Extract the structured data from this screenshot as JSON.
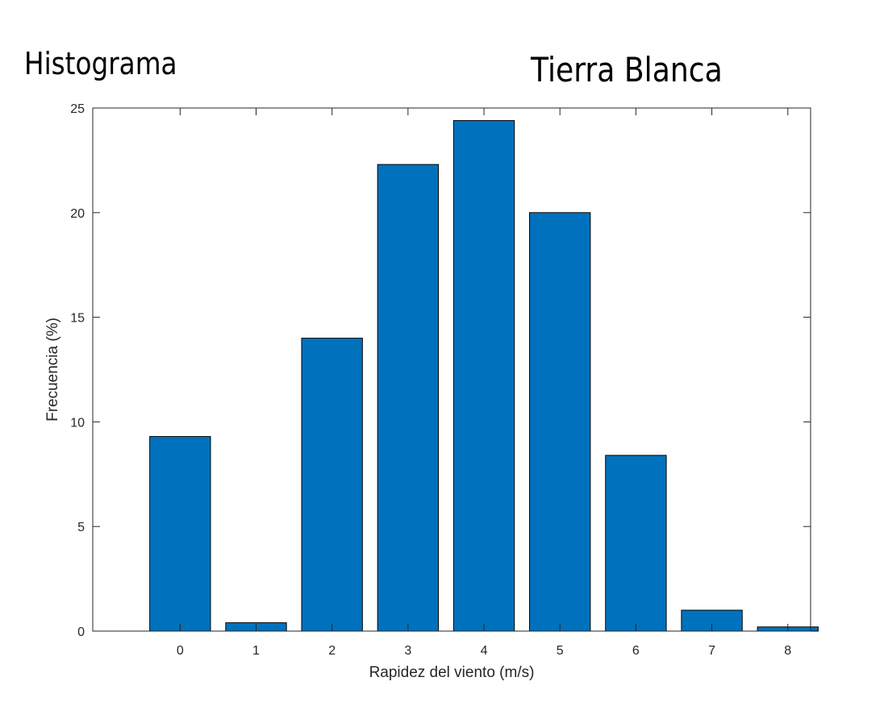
{
  "headings": {
    "left": "Histograma",
    "right": "Tierra Blanca"
  },
  "chart_data": {
    "type": "bar",
    "categories": [
      "0",
      "1",
      "2",
      "3",
      "4",
      "5",
      "6",
      "7",
      "8"
    ],
    "x": [
      0,
      1,
      2,
      3,
      4,
      5,
      6,
      7,
      8
    ],
    "values": [
      9.3,
      0.4,
      14.0,
      22.3,
      24.4,
      20.0,
      8.4,
      1.0,
      0.2
    ],
    "title": "",
    "xlabel": "Rapidez del viento (m/s)",
    "ylabel": "Frecuencia (%)",
    "xlim": [
      -1.15,
      8.3
    ],
    "ylim": [
      0,
      25
    ],
    "yticks": [
      0,
      5,
      10,
      15,
      20,
      25
    ],
    "xticks": [
      0,
      1,
      2,
      3,
      4,
      5,
      6,
      7,
      8
    ],
    "grid": false,
    "bar_color": "#0072BD",
    "edge_color": "#000000",
    "axis_color": "#262626"
  }
}
